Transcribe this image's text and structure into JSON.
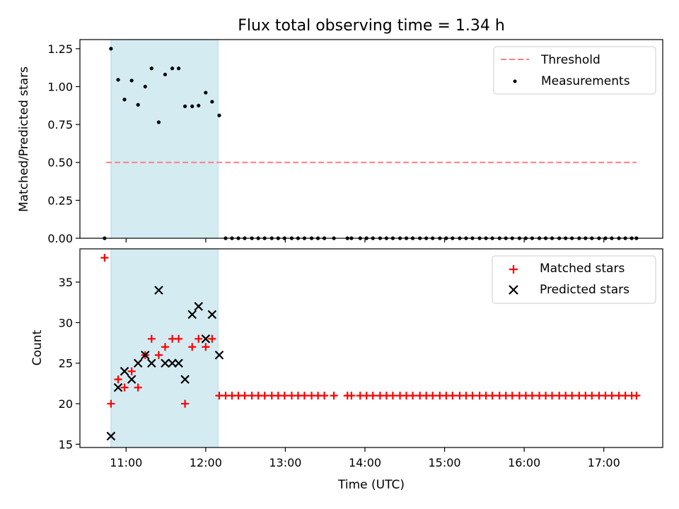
{
  "chart_data": {
    "title": "Flux total observing time = 1.34 h",
    "xlabel": "Time (UTC)",
    "xlim": [
      10.42,
      17.74
    ],
    "x_ticks": [
      11,
      12,
      13,
      14,
      15,
      16,
      17
    ],
    "x_tick_labels": [
      "11:00",
      "12:00",
      "13:00",
      "14:00",
      "15:00",
      "16:00",
      "17:00"
    ],
    "observing_span": [
      10.81,
      12.155
    ],
    "top": {
      "type": "scatter",
      "ylabel": "Matched/Predicted stars",
      "ylim": [
        0,
        1.31
      ],
      "y_ticks": [
        0,
        0.25,
        0.5,
        0.75,
        1.0,
        1.25
      ],
      "y_tick_labels": [
        "0.00",
        "0.25",
        "0.50",
        "0.75",
        "1.00",
        "1.25"
      ],
      "threshold": {
        "name": "Threshold",
        "value": 0.5,
        "x_range": [
          10.75,
          17.41
        ],
        "color": "#ff7f7f"
      },
      "measurements_name": "Measurements",
      "measurements": [
        [
          10.73,
          0
        ],
        [
          10.81,
          1.25
        ],
        [
          10.9,
          1.045
        ],
        [
          10.98,
          0.915
        ],
        [
          11.07,
          1.04
        ],
        [
          11.15,
          0.88
        ],
        [
          11.24,
          1.0
        ],
        [
          11.32,
          1.12
        ],
        [
          11.41,
          0.765
        ],
        [
          11.49,
          1.08
        ],
        [
          11.58,
          1.12
        ],
        [
          11.66,
          1.12
        ],
        [
          11.74,
          0.87
        ],
        [
          11.83,
          0.87
        ],
        [
          11.91,
          0.875
        ],
        [
          12.0,
          0.96
        ],
        [
          12.08,
          0.9
        ],
        [
          12.17,
          0.81
        ],
        [
          12.25,
          0
        ],
        [
          12.33,
          0
        ],
        [
          12.41,
          0
        ],
        [
          12.49,
          0
        ],
        [
          12.58,
          0
        ],
        [
          12.66,
          0
        ],
        [
          12.74,
          0
        ],
        [
          12.83,
          0
        ],
        [
          12.91,
          0
        ],
        [
          12.99,
          0
        ],
        [
          13.08,
          0
        ],
        [
          13.16,
          0
        ],
        [
          13.24,
          0
        ],
        [
          13.33,
          0
        ],
        [
          13.41,
          0
        ],
        [
          13.49,
          0
        ],
        [
          13.61,
          0
        ],
        [
          13.78,
          0
        ],
        [
          13.83,
          0
        ],
        [
          13.94,
          0
        ],
        [
          14.02,
          0
        ],
        [
          14.1,
          0
        ],
        [
          14.19,
          0
        ],
        [
          14.27,
          0
        ],
        [
          14.35,
          0
        ],
        [
          14.44,
          0
        ],
        [
          14.52,
          0
        ],
        [
          14.6,
          0
        ],
        [
          14.69,
          0
        ],
        [
          14.77,
          0
        ],
        [
          14.85,
          0
        ],
        [
          14.94,
          0
        ],
        [
          15.02,
          0
        ],
        [
          15.1,
          0
        ],
        [
          15.19,
          0
        ],
        [
          15.27,
          0
        ],
        [
          15.35,
          0
        ],
        [
          15.44,
          0
        ],
        [
          15.52,
          0
        ],
        [
          15.6,
          0
        ],
        [
          15.69,
          0
        ],
        [
          15.77,
          0
        ],
        [
          15.85,
          0
        ],
        [
          15.94,
          0
        ],
        [
          16.02,
          0
        ],
        [
          16.1,
          0
        ],
        [
          16.19,
          0
        ],
        [
          16.27,
          0
        ],
        [
          16.35,
          0
        ],
        [
          16.44,
          0
        ],
        [
          16.52,
          0
        ],
        [
          16.6,
          0
        ],
        [
          16.69,
          0
        ],
        [
          16.77,
          0
        ],
        [
          16.85,
          0
        ],
        [
          16.94,
          0
        ],
        [
          17.02,
          0
        ],
        [
          17.1,
          0
        ],
        [
          17.19,
          0
        ],
        [
          17.27,
          0
        ],
        [
          17.35,
          0
        ],
        [
          17.41,
          0
        ]
      ]
    },
    "bottom": {
      "type": "scatter",
      "ylabel": "Count",
      "ylim": [
        14.6,
        39.1
      ],
      "y_ticks": [
        15,
        20,
        25,
        30,
        35
      ],
      "y_tick_labels": [
        "15",
        "20",
        "25",
        "30",
        "35"
      ],
      "matched_name": "Matched stars",
      "predicted_name": "Predicted stars",
      "matched_color": "#ff0000",
      "predicted_color": "#000000",
      "matched": [
        [
          10.73,
          38
        ],
        [
          10.81,
          20
        ],
        [
          10.9,
          23
        ],
        [
          10.98,
          22
        ],
        [
          11.07,
          24
        ],
        [
          11.15,
          22
        ],
        [
          11.24,
          26
        ],
        [
          11.32,
          28
        ],
        [
          11.41,
          26
        ],
        [
          11.49,
          27
        ],
        [
          11.58,
          28
        ],
        [
          11.66,
          28
        ],
        [
          11.74,
          20
        ],
        [
          11.83,
          27
        ],
        [
          11.91,
          28
        ],
        [
          12.0,
          27
        ],
        [
          12.08,
          28
        ],
        [
          12.17,
          21
        ],
        [
          12.25,
          21
        ],
        [
          12.33,
          21
        ],
        [
          12.41,
          21
        ],
        [
          12.49,
          21
        ],
        [
          12.58,
          21
        ],
        [
          12.66,
          21
        ],
        [
          12.74,
          21
        ],
        [
          12.83,
          21
        ],
        [
          12.91,
          21
        ],
        [
          12.99,
          21
        ],
        [
          13.08,
          21
        ],
        [
          13.16,
          21
        ],
        [
          13.24,
          21
        ],
        [
          13.33,
          21
        ],
        [
          13.41,
          21
        ],
        [
          13.49,
          21
        ],
        [
          13.61,
          21
        ],
        [
          13.78,
          21
        ],
        [
          13.83,
          21
        ],
        [
          13.94,
          21
        ],
        [
          14.02,
          21
        ],
        [
          14.1,
          21
        ],
        [
          14.19,
          21
        ],
        [
          14.27,
          21
        ],
        [
          14.35,
          21
        ],
        [
          14.44,
          21
        ],
        [
          14.52,
          21
        ],
        [
          14.6,
          21
        ],
        [
          14.69,
          21
        ],
        [
          14.77,
          21
        ],
        [
          14.85,
          21
        ],
        [
          14.94,
          21
        ],
        [
          15.02,
          21
        ],
        [
          15.1,
          21
        ],
        [
          15.19,
          21
        ],
        [
          15.27,
          21
        ],
        [
          15.35,
          21
        ],
        [
          15.44,
          21
        ],
        [
          15.52,
          21
        ],
        [
          15.6,
          21
        ],
        [
          15.69,
          21
        ],
        [
          15.77,
          21
        ],
        [
          15.85,
          21
        ],
        [
          15.94,
          21
        ],
        [
          16.02,
          21
        ],
        [
          16.1,
          21
        ],
        [
          16.19,
          21
        ],
        [
          16.27,
          21
        ],
        [
          16.35,
          21
        ],
        [
          16.44,
          21
        ],
        [
          16.52,
          21
        ],
        [
          16.6,
          21
        ],
        [
          16.69,
          21
        ],
        [
          16.77,
          21
        ],
        [
          16.85,
          21
        ],
        [
          16.94,
          21
        ],
        [
          17.02,
          21
        ],
        [
          17.1,
          21
        ],
        [
          17.19,
          21
        ],
        [
          17.27,
          21
        ],
        [
          17.35,
          21
        ],
        [
          17.41,
          21
        ]
      ],
      "predicted": [
        [
          10.81,
          16
        ],
        [
          10.9,
          22
        ],
        [
          10.98,
          24
        ],
        [
          11.07,
          23
        ],
        [
          11.15,
          25
        ],
        [
          11.24,
          26
        ],
        [
          11.32,
          25
        ],
        [
          11.41,
          34
        ],
        [
          11.49,
          25
        ],
        [
          11.58,
          25
        ],
        [
          11.66,
          25
        ],
        [
          11.74,
          23
        ],
        [
          11.83,
          31
        ],
        [
          11.91,
          32
        ],
        [
          12.0,
          28
        ],
        [
          12.08,
          31
        ],
        [
          12.17,
          26
        ]
      ]
    }
  }
}
